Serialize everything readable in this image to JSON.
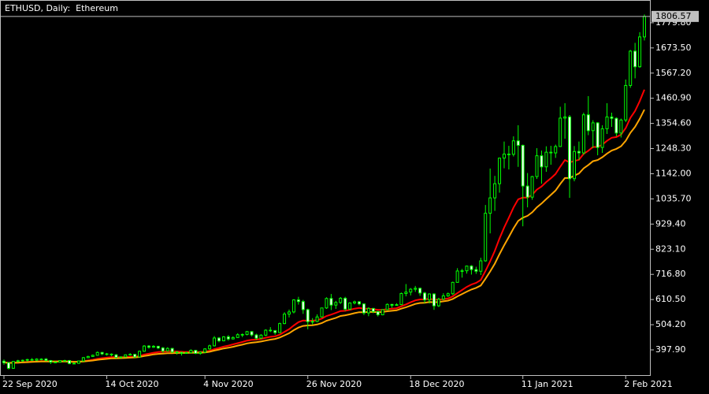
{
  "chart_data": {
    "type": "candlestick",
    "title": "ETHUSD, Daily:  Ethereum",
    "categories": [
      "22 Sep 2020",
      null,
      null,
      null,
      null,
      null,
      null,
      null,
      null,
      null,
      null,
      null,
      null,
      null,
      null,
      null,
      null,
      null,
      null,
      null,
      null,
      null,
      "14 Oct 2020",
      null,
      null,
      null,
      null,
      null,
      null,
      null,
      null,
      null,
      null,
      null,
      null,
      null,
      null,
      null,
      null,
      null,
      null,
      null,
      null,
      "4 Nov 2020",
      null,
      null,
      null,
      null,
      null,
      null,
      null,
      null,
      null,
      null,
      null,
      null,
      null,
      null,
      null,
      null,
      null,
      null,
      null,
      null,
      null,
      "26 Nov 2020",
      null,
      null,
      null,
      null,
      null,
      null,
      null,
      null,
      null,
      null,
      null,
      null,
      null,
      null,
      null,
      null,
      null,
      null,
      null,
      null,
      null,
      "18 Dec 2020",
      null,
      null,
      null,
      null,
      null,
      null,
      null,
      null,
      null,
      null,
      null,
      null,
      null,
      null,
      null,
      null,
      null,
      null,
      null,
      null,
      null,
      null,
      null,
      "11 Jan 2021",
      null,
      null,
      null,
      null,
      null,
      null,
      null,
      null,
      null,
      null,
      null,
      null,
      null,
      null,
      null,
      null,
      null,
      null,
      null,
      null,
      null,
      "2 Feb 2021",
      null,
      null,
      null,
      null
    ],
    "ohlc": [
      [
        350,
        357,
        335,
        344
      ],
      [
        344,
        345,
        315,
        320
      ],
      [
        320,
        351,
        318,
        349
      ],
      [
        349,
        356,
        344,
        352
      ],
      [
        352,
        357,
        348,
        354
      ],
      [
        354,
        360,
        349,
        357
      ],
      [
        357,
        363,
        352,
        354
      ],
      [
        354,
        362,
        351,
        359
      ],
      [
        359,
        362,
        354,
        359
      ],
      [
        359,
        363,
        350,
        353
      ],
      [
        353,
        355,
        338,
        346
      ],
      [
        346,
        349,
        343,
        346
      ],
      [
        346,
        354,
        344,
        353
      ],
      [
        353,
        356,
        348,
        353
      ],
      [
        353,
        355,
        337,
        340
      ],
      [
        340,
        346,
        338,
        341
      ],
      [
        341,
        353,
        339,
        351
      ],
      [
        351,
        368,
        349,
        365
      ],
      [
        365,
        373,
        363,
        370
      ],
      [
        370,
        378,
        368,
        375
      ],
      [
        375,
        391,
        373,
        387
      ],
      [
        387,
        389,
        376,
        381
      ],
      [
        381,
        385,
        374,
        380
      ],
      [
        380,
        383,
        371,
        377
      ],
      [
        377,
        380,
        362,
        366
      ],
      [
        366,
        370,
        364,
        368
      ],
      [
        368,
        379,
        366,
        377
      ],
      [
        377,
        384,
        374,
        379
      ],
      [
        379,
        381,
        364,
        368
      ],
      [
        368,
        395,
        366,
        392
      ],
      [
        392,
        418,
        390,
        414
      ],
      [
        414,
        418,
        403,
        409
      ],
      [
        409,
        418,
        406,
        413
      ],
      [
        413,
        415,
        401,
        406
      ],
      [
        406,
        410,
        386,
        393
      ],
      [
        393,
        409,
        391,
        404
      ],
      [
        404,
        406,
        385,
        389
      ],
      [
        389,
        393,
        378,
        387
      ],
      [
        387,
        390,
        374,
        383
      ],
      [
        383,
        390,
        381,
        386
      ],
      [
        386,
        400,
        384,
        396
      ],
      [
        396,
        398,
        380,
        383
      ],
      [
        383,
        392,
        377,
        388
      ],
      [
        388,
        405,
        385,
        402
      ],
      [
        402,
        420,
        398,
        415
      ],
      [
        415,
        456,
        412,
        448
      ],
      [
        448,
        452,
        430,
        436
      ],
      [
        436,
        456,
        434,
        453
      ],
      [
        453,
        460,
        437,
        444
      ],
      [
        444,
        455,
        442,
        450
      ],
      [
        450,
        468,
        448,
        462
      ],
      [
        462,
        467,
        452,
        463
      ],
      [
        463,
        478,
        459,
        475
      ],
      [
        475,
        477,
        455,
        461
      ],
      [
        461,
        466,
        440,
        447
      ],
      [
        447,
        464,
        444,
        460
      ],
      [
        460,
        485,
        456,
        481
      ],
      [
        481,
        494,
        473,
        479
      ],
      [
        479,
        482,
        462,
        471
      ],
      [
        471,
        513,
        469,
        509
      ],
      [
        509,
        557,
        506,
        549
      ],
      [
        549,
        568,
        535,
        558
      ],
      [
        558,
        612,
        552,
        609
      ],
      [
        609,
        622,
        589,
        602
      ],
      [
        602,
        609,
        550,
        568
      ],
      [
        568,
        572,
        485,
        517
      ],
      [
        517,
        532,
        505,
        518
      ],
      [
        518,
        548,
        515,
        537
      ],
      [
        537,
        576,
        535,
        575
      ],
      [
        575,
        620,
        571,
        615
      ],
      [
        615,
        634,
        566,
        587
      ],
      [
        587,
        605,
        571,
        598
      ],
      [
        598,
        621,
        592,
        616
      ],
      [
        616,
        622,
        562,
        570
      ],
      [
        570,
        599,
        566,
        596
      ],
      [
        596,
        606,
        590,
        601
      ],
      [
        601,
        604,
        586,
        592
      ],
      [
        592,
        594,
        545,
        554
      ],
      [
        554,
        578,
        540,
        573
      ],
      [
        573,
        575,
        553,
        560
      ],
      [
        560,
        562,
        539,
        546
      ],
      [
        546,
        570,
        544,
        568
      ],
      [
        568,
        594,
        566,
        590
      ],
      [
        590,
        592,
        575,
        586
      ],
      [
        586,
        595,
        584,
        589
      ],
      [
        589,
        640,
        587,
        636
      ],
      [
        636,
        676,
        624,
        642
      ],
      [
        642,
        659,
        628,
        654
      ],
      [
        654,
        668,
        643,
        658
      ],
      [
        658,
        661,
        626,
        638
      ],
      [
        638,
        643,
        595,
        609
      ],
      [
        609,
        637,
        594,
        634
      ],
      [
        634,
        637,
        567,
        584
      ],
      [
        584,
        618,
        579,
        612
      ],
      [
        612,
        637,
        608,
        626
      ],
      [
        626,
        640,
        622,
        635
      ],
      [
        635,
        686,
        630,
        683
      ],
      [
        683,
        743,
        682,
        731
      ],
      [
        731,
        740,
        703,
        732
      ],
      [
        732,
        754,
        720,
        752
      ],
      [
        752,
        756,
        716,
        737
      ],
      [
        737,
        749,
        719,
        730
      ],
      [
        730,
        787,
        714,
        774
      ],
      [
        774,
        1010,
        770,
        975
      ],
      [
        975,
        1164,
        890,
        1040
      ],
      [
        1040,
        1133,
        985,
        1100
      ],
      [
        1100,
        1210,
        1062,
        1208
      ],
      [
        1208,
        1278,
        1165,
        1225
      ],
      [
        1225,
        1260,
        1160,
        1224
      ],
      [
        1224,
        1300,
        1215,
        1281
      ],
      [
        1281,
        1347,
        1171,
        1262
      ],
      [
        1262,
        1265,
        920,
        1090
      ],
      [
        1090,
        1145,
        1000,
        1043
      ],
      [
        1043,
        1133,
        1032,
        1130
      ],
      [
        1130,
        1250,
        1120,
        1218
      ],
      [
        1218,
        1240,
        1100,
        1171
      ],
      [
        1171,
        1258,
        1150,
        1233
      ],
      [
        1233,
        1260,
        1180,
        1230
      ],
      [
        1230,
        1265,
        1209,
        1257
      ],
      [
        1257,
        1425,
        1255,
        1377
      ],
      [
        1377,
        1440,
        1290,
        1382
      ],
      [
        1382,
        1390,
        1040,
        1121
      ],
      [
        1121,
        1259,
        1110,
        1236
      ],
      [
        1236,
        1278,
        1200,
        1230
      ],
      [
        1230,
        1400,
        1222,
        1391
      ],
      [
        1391,
        1470,
        1305,
        1324
      ],
      [
        1324,
        1368,
        1250,
        1357
      ],
      [
        1357,
        1360,
        1220,
        1253
      ],
      [
        1253,
        1347,
        1230,
        1332
      ],
      [
        1332,
        1440,
        1310,
        1382
      ],
      [
        1382,
        1400,
        1340,
        1376
      ],
      [
        1376,
        1380,
        1300,
        1314
      ],
      [
        1314,
        1375,
        1295,
        1369
      ],
      [
        1369,
        1540,
        1360,
        1515
      ],
      [
        1515,
        1665,
        1505,
        1660
      ],
      [
        1660,
        1695,
        1545,
        1594
      ],
      [
        1594,
        1740,
        1590,
        1720
      ],
      [
        1720,
        1815,
        1705,
        1806.57
      ]
    ],
    "moving_averages": [
      {
        "color": "#ff0000",
        "values": [
          345,
          342,
          343,
          344,
          345,
          347,
          348,
          349,
          350,
          350,
          349,
          349,
          350,
          350,
          349,
          348,
          348,
          350,
          353,
          356,
          360,
          363,
          365,
          367,
          367,
          367,
          368,
          369,
          369,
          372,
          378,
          382,
          386,
          389,
          390,
          392,
          392,
          391,
          390,
          389,
          390,
          389,
          389,
          391,
          394,
          401,
          406,
          412,
          416,
          421,
          426,
          431,
          437,
          440,
          441,
          444,
          449,
          453,
          455,
          462,
          474,
          485,
          501,
          515,
          522,
          521,
          521,
          523,
          530,
          541,
          547,
          554,
          562,
          563,
          567,
          572,
          575,
          572,
          572,
          570,
          567,
          567,
          570,
          572,
          574,
          582,
          590,
          599,
          607,
          611,
          611,
          614,
          610,
          610,
          612,
          615,
          624,
          638,
          651,
          664,
          674,
          681,
          693,
          731,
          772,
          816,
          868,
          915,
          956,
          999,
          1034,
          1041,
          1041,
          1053,
          1075,
          1088,
          1107,
          1123,
          1141,
          1172,
          1200,
          1190,
          1196,
          1201,
          1226,
          1239,
          1255,
          1255,
          1265,
          1281,
          1294,
          1297,
          1307,
          1335,
          1378,
          1407,
          1449,
          1497
        ]
      },
      {
        "color": "#ffa500",
        "values": [
          345,
          343,
          344,
          344,
          345,
          346,
          347,
          348,
          349,
          349,
          349,
          349,
          349,
          349,
          348,
          347,
          348,
          349,
          351,
          353,
          356,
          358,
          360,
          362,
          362,
          363,
          364,
          365,
          366,
          368,
          372,
          375,
          379,
          381,
          382,
          384,
          384,
          385,
          385,
          385,
          386,
          386,
          386,
          387,
          390,
          395,
          399,
          404,
          407,
          411,
          416,
          420,
          425,
          428,
          430,
          433,
          437,
          441,
          444,
          450,
          459,
          468,
          481,
          492,
          499,
          501,
          502,
          505,
          511,
          521,
          527,
          533,
          541,
          544,
          548,
          553,
          557,
          557,
          558,
          558,
          557,
          558,
          561,
          563,
          565,
          572,
          578,
          585,
          592,
          596,
          597,
          600,
          599,
          600,
          603,
          606,
          613,
          624,
          634,
          644,
          653,
          660,
          670,
          698,
          729,
          762,
          802,
          840,
          875,
          911,
          943,
          956,
          964,
          979,
          1000,
          1016,
          1035,
          1053,
          1071,
          1099,
          1124,
          1124,
          1134,
          1143,
          1165,
          1179,
          1195,
          1200,
          1212,
          1227,
          1240,
          1247,
          1258,
          1281,
          1315,
          1340,
          1374,
          1413
        ]
      }
    ],
    "candle_color": "#00ff00",
    "ylim": [
      288,
      1876
    ],
    "yticks": [
      {
        "value": 397.9,
        "label": "397.90"
      },
      {
        "value": 504.2,
        "label": "504.20"
      },
      {
        "value": 610.5,
        "label": "610.50"
      },
      {
        "value": 716.8,
        "label": "716.80"
      },
      {
        "value": 823.1,
        "label": "823.10"
      },
      {
        "value": 929.4,
        "label": "929.40"
      },
      {
        "value": 1035.7,
        "label": "1035.70"
      },
      {
        "value": 1142,
        "label": "1142.00"
      },
      {
        "value": 1248.3,
        "label": "1248.30"
      },
      {
        "value": 1354.6,
        "label": "1354.60"
      },
      {
        "value": 1460.9,
        "label": "1460.90"
      },
      {
        "value": 1567.2,
        "label": "1567.20"
      },
      {
        "value": 1673.5,
        "label": "1673.50"
      },
      {
        "value": 1779.8,
        "label": "1779.80"
      }
    ],
    "last_price": {
      "value": 1806.57,
      "label": "1806.57"
    }
  }
}
